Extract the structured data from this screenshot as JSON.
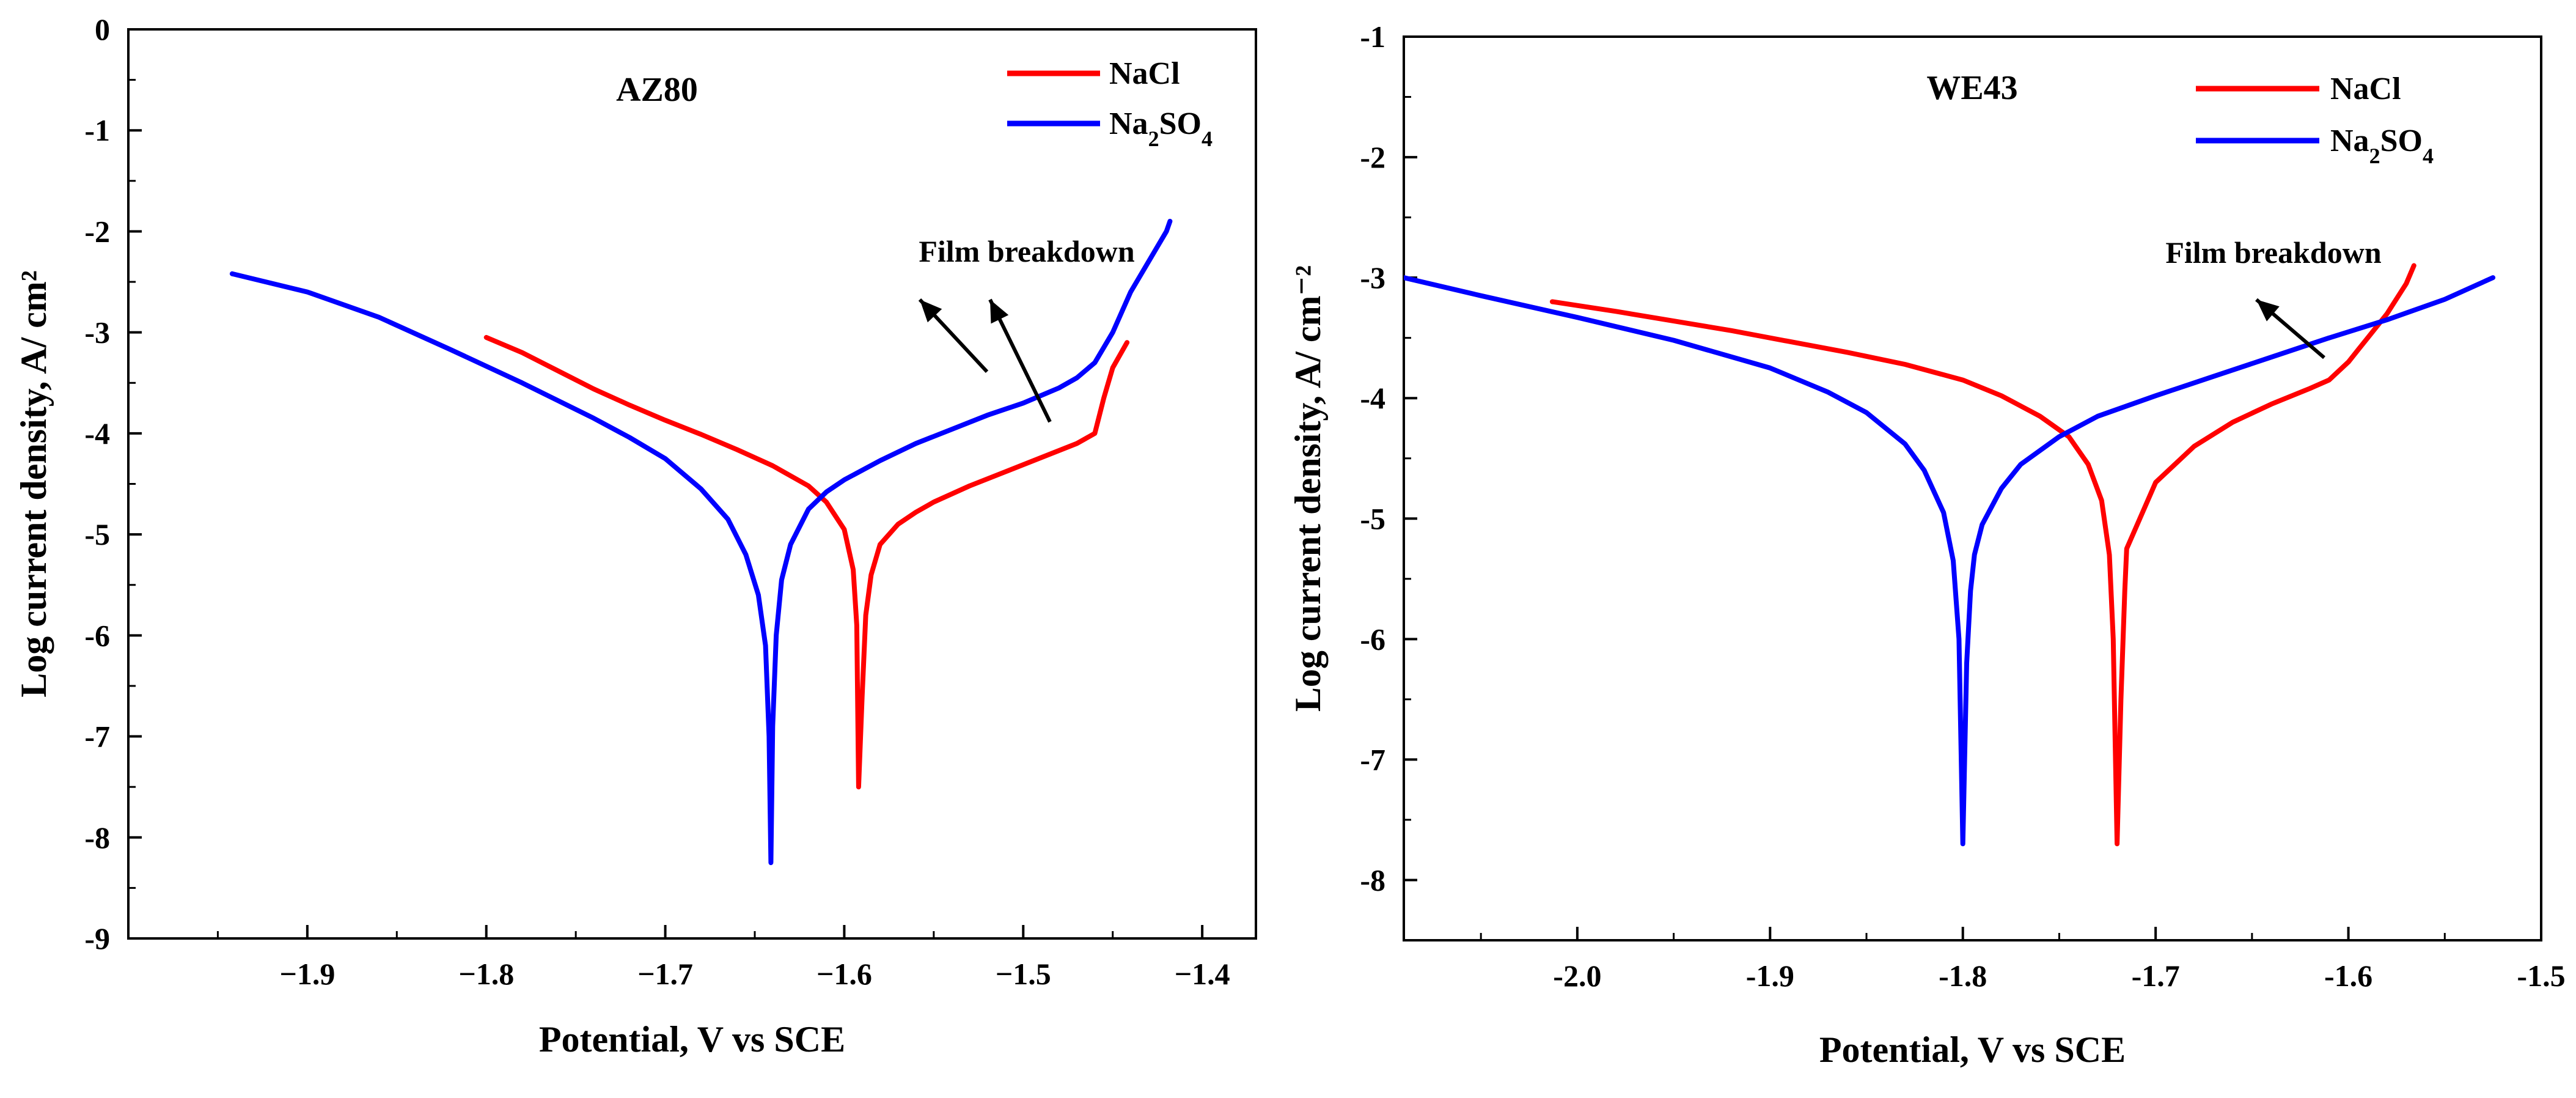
{
  "chart_data": [
    {
      "type": "line",
      "title": "AZ80",
      "xlabel": "Potential, V vs SCE",
      "ylabel": "Log current density, A/ cm²",
      "xlim": [
        -2.0,
        -1.37
      ],
      "ylim": [
        -9,
        0
      ],
      "xticks": [
        -1.9,
        -1.8,
        -1.7,
        -1.6,
        -1.5,
        -1.4
      ],
      "xtick_labels": [
        "−1.9",
        "−1.8",
        "−1.7",
        "−1.6",
        "−1.5",
        "−1.4"
      ],
      "yticks": [
        0,
        -1,
        -2,
        -3,
        -4,
        -5,
        -6,
        -7,
        -8,
        -9
      ],
      "ytick_labels": [
        "0",
        "-1",
        "-2",
        "-3",
        "-4",
        "-5",
        "-6",
        "-7",
        "-8",
        "-9"
      ],
      "legend_position": "top-right",
      "annotation": "Film breakdown",
      "series": [
        {
          "name": "NaCl",
          "color": "#ff0000",
          "x": [
            -1.8,
            -1.78,
            -1.76,
            -1.74,
            -1.72,
            -1.7,
            -1.68,
            -1.66,
            -1.64,
            -1.62,
            -1.61,
            -1.6,
            -1.595,
            -1.593,
            -1.592,
            -1.59,
            -1.588,
            -1.585,
            -1.58,
            -1.57,
            -1.56,
            -1.55,
            -1.53,
            -1.51,
            -1.49,
            -1.47,
            -1.46,
            -1.455,
            -1.45,
            -1.442
          ],
          "y": [
            -3.05,
            -3.2,
            -3.38,
            -3.56,
            -3.72,
            -3.87,
            -4.01,
            -4.16,
            -4.32,
            -4.52,
            -4.68,
            -4.95,
            -5.35,
            -5.9,
            -7.5,
            -6.6,
            -5.8,
            -5.4,
            -5.1,
            -4.9,
            -4.78,
            -4.68,
            -4.52,
            -4.38,
            -4.24,
            -4.1,
            -4.0,
            -3.65,
            -3.35,
            -3.1
          ]
        },
        {
          "name": "Na2SO4",
          "color": "#0000ff",
          "x": [
            -1.942,
            -1.9,
            -1.86,
            -1.82,
            -1.78,
            -1.74,
            -1.72,
            -1.7,
            -1.68,
            -1.665,
            -1.655,
            -1.648,
            -1.644,
            -1.642,
            -1.641,
            -1.64,
            -1.638,
            -1.635,
            -1.63,
            -1.62,
            -1.61,
            -1.6,
            -1.58,
            -1.56,
            -1.54,
            -1.52,
            -1.5,
            -1.48,
            -1.47,
            -1.46,
            -1.45,
            -1.44,
            -1.42,
            -1.418
          ],
          "y": [
            -2.42,
            -2.6,
            -2.85,
            -3.17,
            -3.5,
            -3.85,
            -4.04,
            -4.25,
            -4.55,
            -4.85,
            -5.2,
            -5.6,
            -6.1,
            -7.0,
            -8.25,
            -6.9,
            -6.0,
            -5.45,
            -5.1,
            -4.75,
            -4.58,
            -4.46,
            -4.27,
            -4.1,
            -3.96,
            -3.82,
            -3.7,
            -3.55,
            -3.45,
            -3.3,
            -3.0,
            -2.6,
            -2.0,
            -1.9
          ]
        }
      ]
    },
    {
      "type": "line",
      "title": "WE43",
      "xlabel": "Potential, V vs SCE",
      "ylabel": "Log current density, A/ cm⁻²",
      "xlim": [
        -2.09,
        -1.5
      ],
      "ylim": [
        -8.5,
        -1
      ],
      "xticks": [
        -2.0,
        -1.9,
        -1.8,
        -1.7,
        -1.6,
        -1.5
      ],
      "xtick_labels": [
        "-2.0",
        "-1.9",
        "-1.8",
        "-1.7",
        "-1.6",
        "-1.5"
      ],
      "yticks": [
        -1,
        -2,
        -3,
        -4,
        -5,
        -6,
        -7,
        -8
      ],
      "ytick_labels": [
        "-1",
        "-2",
        "-3",
        "-4",
        "-5",
        "-6",
        "-7",
        "-8"
      ],
      "legend_position": "top-right",
      "annotation": "Film breakdown",
      "series": [
        {
          "name": "NaCl",
          "color": "#ff0000",
          "x": [
            -2.013,
            -1.98,
            -1.95,
            -1.92,
            -1.89,
            -1.86,
            -1.83,
            -1.8,
            -1.78,
            -1.76,
            -1.745,
            -1.735,
            -1.728,
            -1.724,
            -1.722,
            -1.72,
            -1.718,
            -1.716,
            -1.715,
            -1.7,
            -1.68,
            -1.66,
            -1.64,
            -1.62,
            -1.61,
            -1.6,
            -1.595,
            -1.59,
            -1.58,
            -1.57,
            -1.566
          ],
          "y": [
            -3.2,
            -3.28,
            -3.36,
            -3.44,
            -3.53,
            -3.62,
            -3.72,
            -3.85,
            -3.98,
            -4.15,
            -4.32,
            -4.55,
            -4.85,
            -5.3,
            -6.0,
            -7.7,
            -6.5,
            -5.6,
            -5.25,
            -4.7,
            -4.4,
            -4.2,
            -4.05,
            -3.92,
            -3.85,
            -3.7,
            -3.6,
            -3.5,
            -3.3,
            -3.05,
            -2.9
          ]
        },
        {
          "name": "Na2SO4",
          "color": "#0000ff",
          "x": [
            -2.09,
            -2.05,
            -2.0,
            -1.95,
            -1.9,
            -1.87,
            -1.85,
            -1.83,
            -1.82,
            -1.81,
            -1.805,
            -1.802,
            -1.8,
            -1.798,
            -1.796,
            -1.794,
            -1.79,
            -1.78,
            -1.77,
            -1.75,
            -1.73,
            -1.7,
            -1.67,
            -1.64,
            -1.61,
            -1.58,
            -1.55,
            -1.525
          ],
          "y": [
            -3.0,
            -3.15,
            -3.33,
            -3.52,
            -3.75,
            -3.95,
            -4.12,
            -4.38,
            -4.6,
            -4.95,
            -5.35,
            -6.0,
            -7.7,
            -6.2,
            -5.6,
            -5.3,
            -5.05,
            -4.75,
            -4.55,
            -4.32,
            -4.15,
            -3.98,
            -3.82,
            -3.66,
            -3.5,
            -3.35,
            -3.18,
            -3.0
          ]
        }
      ]
    }
  ]
}
